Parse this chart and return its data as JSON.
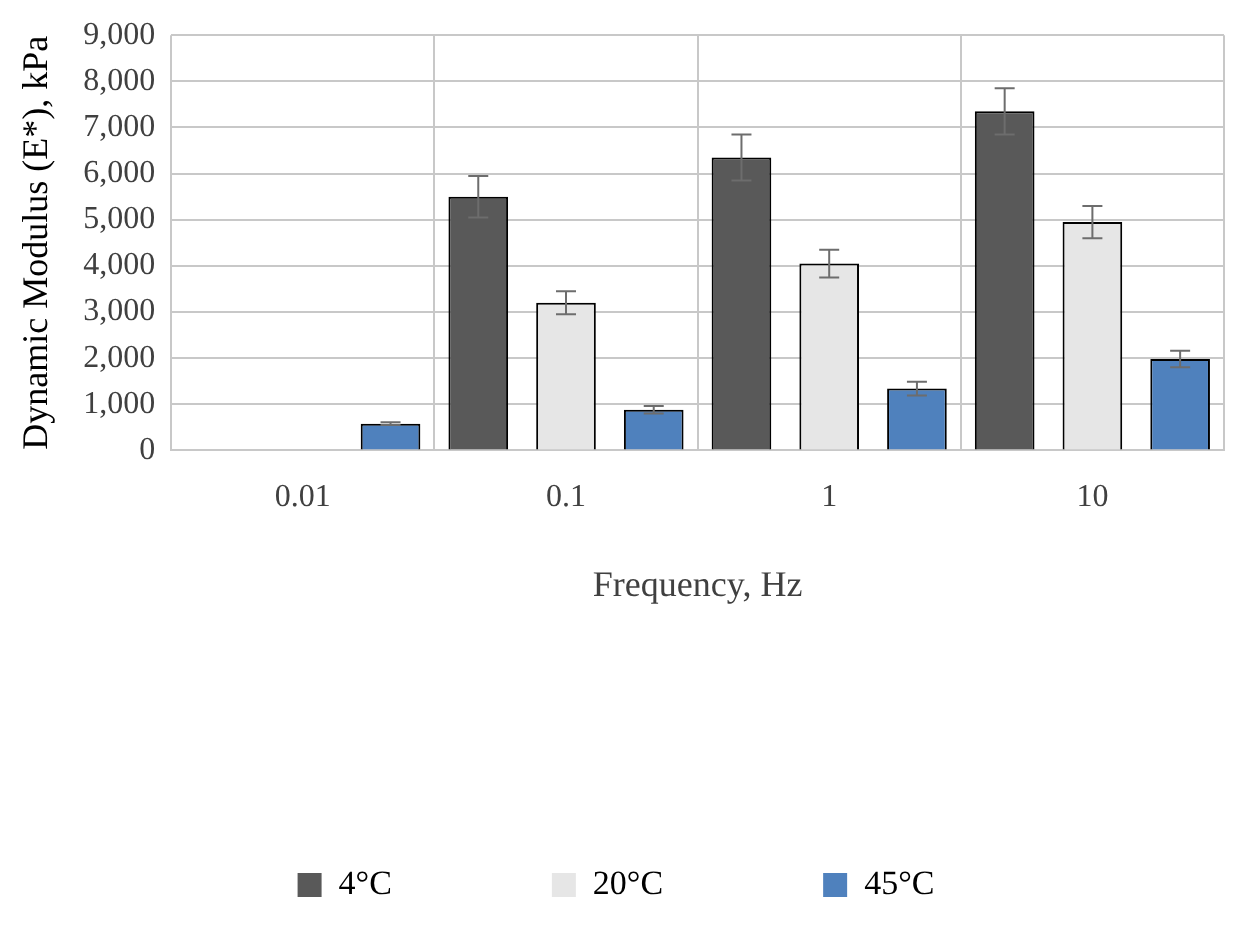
{
  "chart_data": {
    "type": "bar",
    "xlabel": "Frequency, Hz",
    "ylabel": "Dynamic Modulus (E*), kPa",
    "categories": [
      "0.01",
      "0.1",
      "1",
      "10"
    ],
    "series": [
      {
        "name": "4°C",
        "color": "#595959",
        "values": [
          null,
          5500,
          6350,
          7350
        ],
        "errors": [
          null,
          450,
          500,
          500
        ]
      },
      {
        "name": "20°C",
        "color": "#e6e6e6",
        "values": [
          null,
          3200,
          4050,
          4950
        ],
        "errors": [
          null,
          250,
          300,
          350
        ]
      },
      {
        "name": "45°C",
        "color": "#4f81bd",
        "values": [
          580,
          880,
          1340,
          1980
        ],
        "errors": [
          30,
          80,
          150,
          180
        ]
      }
    ],
    "ylim": [
      0,
      9000
    ],
    "yticks": [
      0,
      {
        "value": 1000,
        "label": "1,000"
      },
      {
        "value": 2000,
        "label": "2,000"
      },
      {
        "value": 3000,
        "label": "3,000"
      },
      {
        "value": 4000,
        "label": "4,000"
      },
      {
        "value": 5000,
        "label": "5,000"
      },
      {
        "value": 6000,
        "label": "6,000"
      },
      {
        "value": 7000,
        "label": "7,000"
      },
      {
        "value": 8000,
        "label": "8,000"
      },
      {
        "value": 9000,
        "label": "9,000"
      }
    ],
    "grid": true,
    "legend": "bottom"
  }
}
